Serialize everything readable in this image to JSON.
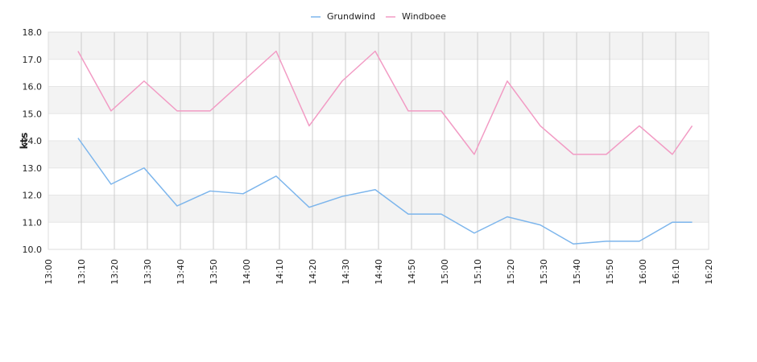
{
  "chart_data": {
    "type": "line",
    "title": "",
    "xlabel": "",
    "ylabel": "kts",
    "x_tick_labels": [
      "13:00",
      "13:10",
      "13:20",
      "13:30",
      "13:40",
      "13:50",
      "14:00",
      "14:10",
      "14:20",
      "14:30",
      "14:40",
      "14:50",
      "15:00",
      "15:10",
      "15:20",
      "15:30",
      "15:40",
      "15:50",
      "16:00",
      "16:10",
      "16:20"
    ],
    "y_tick_labels": [
      "10.0",
      "11.0",
      "12.0",
      "13.0",
      "14.0",
      "15.0",
      "16.0",
      "17.0",
      "18.0"
    ],
    "xlim": [
      "13:00",
      "16:20"
    ],
    "ylim": [
      10,
      18
    ],
    "grid": true,
    "legend_position": "top-center",
    "x": [
      "13:09",
      "13:19",
      "13:29",
      "13:39",
      "13:49",
      "13:59",
      "14:09",
      "14:19",
      "14:29",
      "14:39",
      "14:49",
      "14:59",
      "15:09",
      "15:19",
      "15:29",
      "15:39",
      "15:49",
      "15:59",
      "16:09",
      "16:15"
    ],
    "series": [
      {
        "name": "Grundwind",
        "color": "#7cb5ec",
        "values": [
          14.1,
          12.4,
          13.0,
          11.6,
          12.15,
          12.05,
          12.7,
          11.55,
          11.95,
          12.2,
          11.3,
          11.3,
          10.6,
          11.2,
          10.9,
          10.2,
          10.3,
          10.3,
          11.0,
          11.0
        ]
      },
      {
        "name": "Windboee",
        "color": "#f29bc4",
        "values": [
          17.3,
          15.1,
          16.2,
          15.1,
          15.1,
          16.2,
          17.3,
          14.55,
          16.2,
          17.3,
          15.1,
          15.1,
          13.5,
          16.2,
          14.55,
          13.5,
          13.5,
          14.55,
          13.5,
          14.55
        ]
      }
    ]
  }
}
